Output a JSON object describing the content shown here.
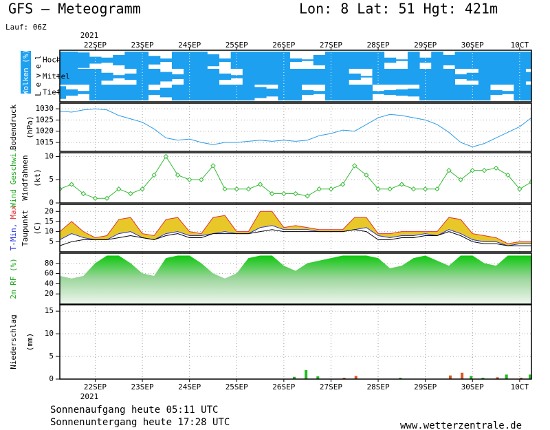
{
  "header": {
    "title": "GFS – Meteogramm",
    "location": "Lon: 8 Lat: 51 Hgt: 421m",
    "run": "Lauf: 06Z"
  },
  "chart_data": [
    {
      "type": "cloud",
      "ylabel": "Wolken (%)",
      "ylabel2": "L e v e l",
      "year": "2021",
      "xlim": [
        0,
        240
      ],
      "xticks": [
        {
          "value": 18,
          "label": "22SEP"
        },
        {
          "value": 42,
          "label": "23SEP"
        },
        {
          "value": 66,
          "label": "24SEP"
        },
        {
          "value": 90,
          "label": "25SEP"
        },
        {
          "value": 114,
          "label": "26SEP"
        },
        {
          "value": 138,
          "label": "27SEP"
        },
        {
          "value": 162,
          "label": "28SEP"
        },
        {
          "value": 186,
          "label": "29SEP"
        },
        {
          "value": 210,
          "label": "30SEP"
        },
        {
          "value": 234,
          "label": "10CT"
        }
      ],
      "x": [
        0,
        6,
        12,
        18,
        24,
        30,
        36,
        42,
        48,
        54,
        60,
        66,
        72,
        78,
        84,
        90,
        96,
        102,
        108,
        114,
        120,
        126,
        132,
        138,
        144,
        150,
        156,
        162,
        168,
        174,
        180,
        186,
        192,
        198,
        204,
        210,
        216,
        222,
        228,
        234,
        240
      ],
      "ylim": [
        0,
        100
      ],
      "grid": true,
      "series": [
        {
          "name": "Hoch",
          "color": "#1ea0f0",
          "values": [
            100,
            100,
            90,
            40,
            30,
            60,
            100,
            100,
            50,
            20,
            100,
            100,
            100,
            70,
            20,
            100,
            100,
            100,
            100,
            100,
            20,
            10,
            60,
            100,
            100,
            100,
            100,
            100,
            30,
            10,
            100,
            30,
            100,
            60,
            100,
            100,
            100,
            100,
            100,
            100,
            100
          ]
        },
        {
          "name": "Mittel",
          "color": "#1ea0f0",
          "values": [
            100,
            100,
            100,
            100,
            50,
            20,
            40,
            100,
            100,
            60,
            30,
            100,
            100,
            100,
            40,
            20,
            100,
            100,
            100,
            100,
            100,
            100,
            100,
            100,
            100,
            40,
            10,
            100,
            100,
            100,
            100,
            100,
            100,
            100,
            30,
            50,
            100,
            100,
            100,
            100,
            60
          ]
        },
        {
          "name": "Tief",
          "color": "#1ea0f0",
          "values": [
            80,
            40,
            20,
            100,
            100,
            100,
            100,
            100,
            30,
            60,
            100,
            100,
            100,
            100,
            100,
            100,
            100,
            70,
            50,
            100,
            100,
            30,
            20,
            100,
            100,
            100,
            100,
            20,
            30,
            40,
            50,
            100,
            100,
            100,
            100,
            100,
            100,
            30,
            20,
            100,
            100
          ]
        }
      ]
    },
    {
      "type": "line",
      "ylabel": "Bodendruck",
      "unit": "(hPa)",
      "x": [
        0,
        6,
        12,
        18,
        24,
        30,
        36,
        42,
        48,
        54,
        60,
        66,
        72,
        78,
        84,
        90,
        96,
        102,
        108,
        114,
        120,
        126,
        132,
        138,
        144,
        150,
        156,
        162,
        168,
        174,
        180,
        186,
        192,
        198,
        204,
        210,
        216,
        222,
        228,
        234,
        240
      ],
      "ylim": [
        1011,
        1032.5
      ],
      "yticks": [
        1015,
        1020,
        1025,
        1030
      ],
      "grid": true,
      "series": [
        {
          "color": "#2a9be8",
          "values": [
            1029,
            1028.5,
            1029.5,
            1030,
            1029.5,
            1027,
            1025.5,
            1024,
            1021,
            1017,
            1016,
            1016.5,
            1015,
            1014,
            1015,
            1015,
            1015.5,
            1016,
            1015.5,
            1016,
            1015.5,
            1016,
            1018,
            1019,
            1020.5,
            1020,
            1023,
            1026,
            1027.5,
            1027,
            1026,
            1025,
            1023,
            1019.5,
            1015,
            1013,
            1014.5,
            1017,
            1019.5,
            1022,
            1026
          ]
        }
      ]
    },
    {
      "type": "line",
      "ylabel": "Wind Geschwi.",
      "ylabel_color": "#22aa22",
      "ylabel2": "Windfahnen",
      "unit": "(kt)",
      "markers": true,
      "x": [
        0,
        6,
        12,
        18,
        24,
        30,
        36,
        42,
        48,
        54,
        60,
        66,
        72,
        78,
        84,
        90,
        96,
        102,
        108,
        114,
        120,
        126,
        132,
        138,
        144,
        150,
        156,
        162,
        168,
        174,
        180,
        186,
        192,
        198,
        204,
        210,
        216,
        222,
        228,
        234,
        240
      ],
      "ylim": [
        0,
        10.8
      ],
      "yticks": [
        0,
        5,
        10
      ],
      "grid": true,
      "series": [
        {
          "color": "#33bb33",
          "values": [
            3,
            4,
            2,
            1,
            1,
            3,
            2,
            3,
            6,
            10,
            6,
            5,
            5,
            8,
            3,
            3,
            3,
            4,
            2,
            2,
            2,
            1.5,
            3,
            3,
            4,
            8,
            6,
            3,
            3,
            4,
            3,
            3,
            3,
            7,
            5,
            7,
            7,
            7.5,
            6,
            3,
            4.5
          ]
        }
      ]
    },
    {
      "type": "temp",
      "ylabel": [
        "T-Min,",
        "Max"
      ],
      "ylabel2": "Taupunkt",
      "unit": "(C)",
      "fill": "#e8c828",
      "x": [
        0,
        6,
        12,
        18,
        24,
        30,
        36,
        42,
        48,
        54,
        60,
        66,
        72,
        78,
        84,
        90,
        96,
        102,
        108,
        114,
        120,
        126,
        132,
        138,
        144,
        150,
        156,
        162,
        168,
        174,
        180,
        186,
        192,
        198,
        204,
        210,
        216,
        222,
        228,
        234,
        240
      ],
      "ylim": [
        0,
        23.5
      ],
      "yticks": [
        5,
        10,
        15,
        20
      ],
      "grid": true,
      "series": [
        {
          "color": "#e03030",
          "values": [
            10,
            15,
            10,
            7,
            8,
            16,
            17,
            9,
            8,
            16,
            17,
            10,
            9,
            17,
            18,
            10,
            10,
            20,
            20,
            12,
            13,
            12,
            11,
            11,
            11,
            17,
            17,
            9,
            9,
            10,
            10,
            10,
            10,
            17,
            16,
            9,
            8,
            7,
            4,
            5,
            5
          ]
        },
        {
          "color": "#2233dd",
          "values": [
            6,
            9,
            7,
            6,
            6,
            9,
            10,
            7,
            6,
            9,
            10,
            8,
            8,
            9,
            10,
            9,
            9,
            12,
            13,
            11,
            11,
            11,
            10,
            10,
            10,
            11,
            12,
            8,
            7,
            8,
            8,
            9,
            8,
            11,
            9,
            6,
            5,
            5,
            3,
            4,
            4
          ]
        },
        {
          "color": "#000000",
          "values": [
            3,
            5,
            6,
            6,
            6,
            7,
            8,
            7,
            6,
            8,
            9,
            7,
            7,
            9,
            9,
            9,
            9,
            10,
            11,
            10,
            10,
            10,
            10,
            10,
            10,
            11,
            10,
            6,
            6,
            7,
            7,
            8,
            8,
            10,
            8,
            5,
            4,
            4,
            3,
            3,
            3
          ]
        }
      ]
    },
    {
      "type": "area",
      "ylabel": "2m RF (%)",
      "ylabel_color": "#22aa22",
      "x": [
        0,
        6,
        12,
        18,
        24,
        30,
        36,
        42,
        48,
        54,
        60,
        66,
        72,
        78,
        84,
        90,
        96,
        102,
        108,
        114,
        120,
        126,
        132,
        138,
        144,
        150,
        156,
        162,
        168,
        174,
        180,
        186,
        192,
        198,
        204,
        210,
        216,
        222,
        228,
        234,
        240
      ],
      "ylim": [
        0,
        100
      ],
      "yticks": [
        20,
        40,
        60,
        80
      ],
      "grid": true,
      "series": [
        {
          "color": "#11c411",
          "values": [
            55,
            50,
            55,
            80,
            95,
            95,
            80,
            60,
            55,
            90,
            95,
            95,
            80,
            60,
            50,
            60,
            90,
            95,
            95,
            75,
            65,
            80,
            85,
            90,
            95,
            95,
            95,
            90,
            70,
            75,
            90,
            95,
            85,
            75,
            95,
            95,
            80,
            75,
            95,
            95,
            95
          ]
        }
      ]
    },
    {
      "type": "bar",
      "ylabel": "Niederschlag",
      "unit": "(mm)",
      "year": "2021",
      "xlim": [
        0,
        240
      ],
      "xticks": [
        {
          "value": 18,
          "label": "22SEP"
        },
        {
          "value": 42,
          "label": "23SEP"
        },
        {
          "value": 66,
          "label": "24SEP"
        },
        {
          "value": 90,
          "label": "25SEP"
        },
        {
          "value": 114,
          "label": "26SEP"
        },
        {
          "value": 138,
          "label": "27SEP"
        },
        {
          "value": 162,
          "label": "28SEP"
        },
        {
          "value": 186,
          "label": "29SEP"
        },
        {
          "value": 210,
          "label": "30SEP"
        },
        {
          "value": 234,
          "label": "10CT"
        }
      ],
      "x": [
        0,
        6,
        12,
        18,
        24,
        30,
        36,
        42,
        48,
        54,
        60,
        66,
        72,
        78,
        84,
        90,
        96,
        102,
        108,
        114,
        120,
        126,
        132,
        138,
        144,
        150,
        156,
        162,
        168,
        174,
        180,
        186,
        192,
        198,
        204,
        210,
        216,
        222,
        228,
        234,
        240
      ],
      "ylim": [
        0,
        16.4
      ],
      "yticks": [
        0,
        5,
        10,
        15
      ],
      "grid": true,
      "series": [
        {
          "color": "#22bb22",
          "values": [
            0,
            0,
            0,
            0,
            0,
            0,
            0,
            0,
            0,
            0,
            0,
            0,
            0,
            0,
            0,
            0,
            0,
            0,
            0,
            0,
            0.5,
            2,
            0.6,
            0,
            0,
            0,
            0,
            0,
            0,
            0.3,
            0,
            0,
            0,
            0,
            0,
            0.7,
            0.3,
            0,
            1,
            0,
            1
          ]
        },
        {
          "color": "#dd5522",
          "values": [
            0,
            0,
            0,
            0,
            0,
            0,
            0,
            0,
            0,
            0,
            0,
            0,
            0,
            0,
            0,
            0,
            0,
            0,
            0,
            0,
            0,
            0,
            0,
            0,
            0.3,
            0.7,
            0,
            0,
            0,
            0,
            0,
            0,
            0,
            0.8,
            1.4,
            0,
            0,
            0.4,
            0,
            0.3,
            0
          ]
        }
      ]
    }
  ],
  "footer": {
    "sunrise": "Sonnenaufgang heute 05:11 UTC",
    "sunset": "Sonnenuntergang heute 17:28 UTC",
    "source": "www.wetterzentrale.de"
  }
}
